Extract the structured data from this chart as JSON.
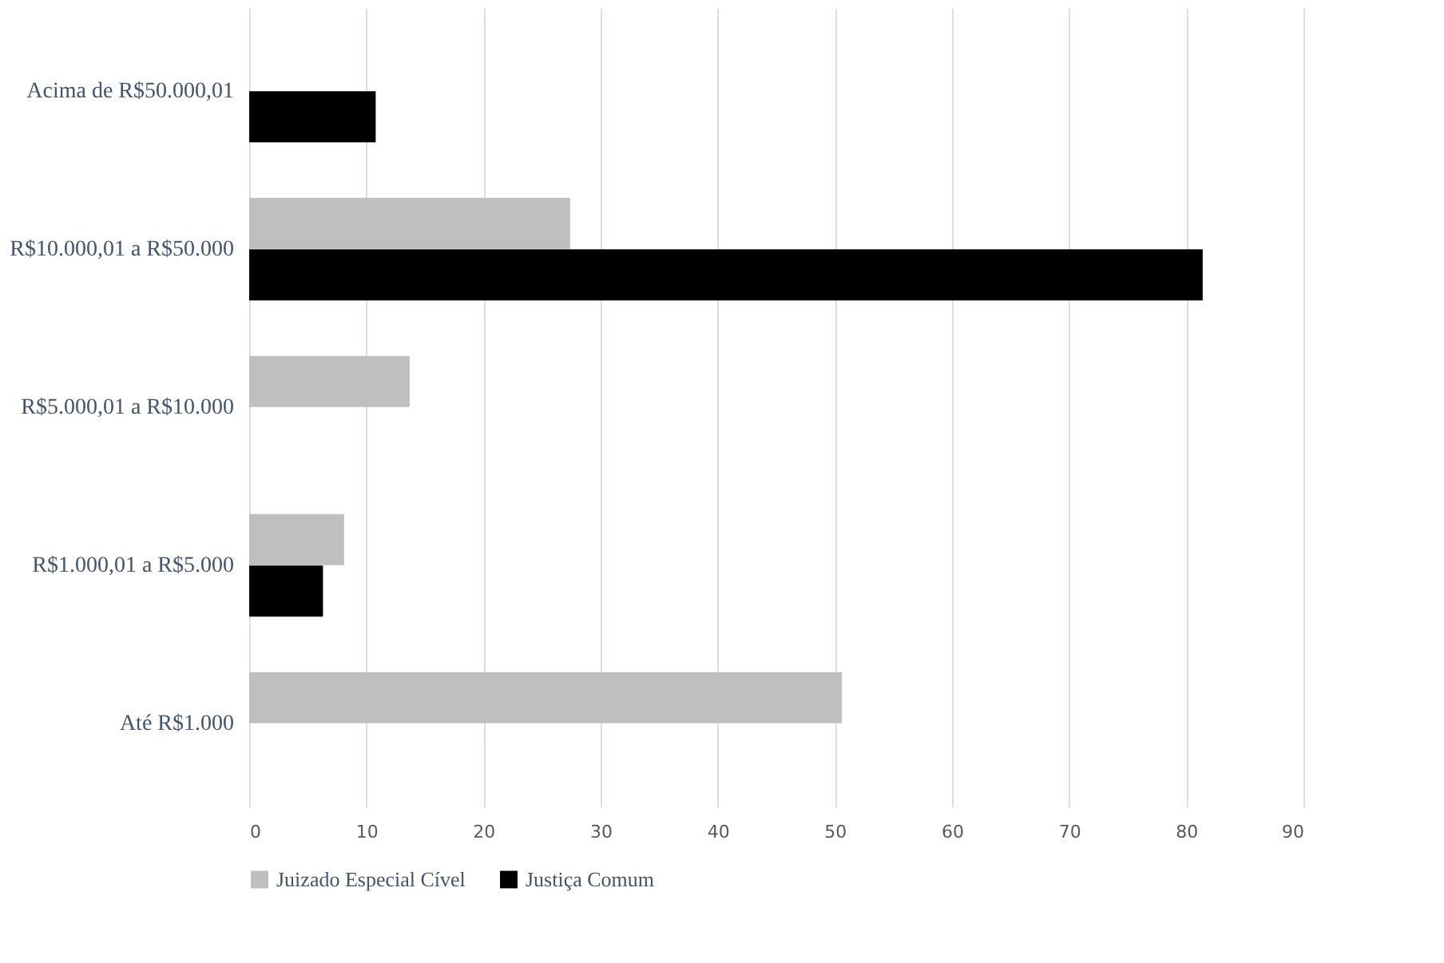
{
  "chart_data": {
    "type": "bar",
    "orientation": "horizontal",
    "categories": [
      "Acima de R$50.000,01",
      "R$10.000,01 a R$50.000",
      "R$5.000,01 a R$10.000",
      "R$1.000,01 a R$5.000",
      "Até R$1.000"
    ],
    "series": [
      {
        "name": "Juizado Especial Cível",
        "color": "#bfbfbf",
        "values": [
          null,
          27.4,
          13.7,
          8.1,
          50.6
        ]
      },
      {
        "name": "Justiça Comum",
        "color": "#000000",
        "values": [
          10.8,
          81.4,
          null,
          6.3,
          null
        ]
      }
    ],
    "xlim": [
      0,
      90
    ],
    "xticks": [
      0,
      10,
      20,
      30,
      40,
      50,
      60,
      70,
      80,
      90
    ],
    "grid": "x",
    "legend": "bottom"
  }
}
